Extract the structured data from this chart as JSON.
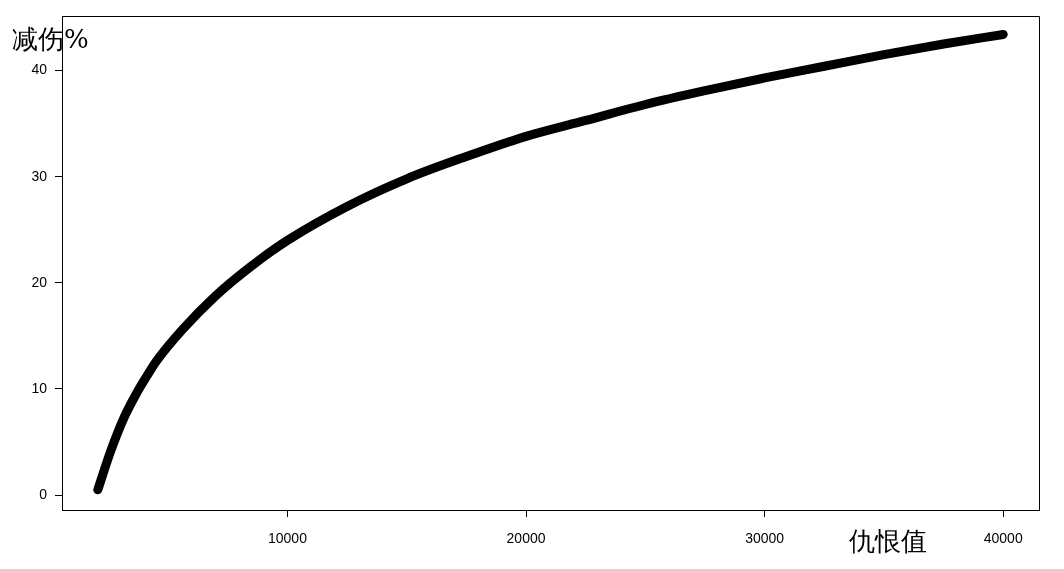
{
  "chart_data": {
    "type": "line",
    "xlabel": "仇恨值",
    "ylabel": "减伤%",
    "x": [
      2050,
      2600,
      3150,
      3700,
      4100,
      4500,
      5600,
      7000,
      8500,
      10000,
      12500,
      15000,
      17500,
      20000,
      22500,
      25000,
      27500,
      30000,
      32500,
      35000,
      37500,
      40000
    ],
    "series": [
      {
        "color": "#000000",
        "values": [
          0.5,
          4.2,
          7.3,
          9.7,
          11.2,
          12.6,
          15.6,
          18.8,
          21.6,
          24.0,
          27.2,
          29.8,
          31.9,
          33.8,
          35.3,
          36.8,
          38.1,
          39.3,
          40.4,
          41.5,
          42.5,
          43.4
        ]
      }
    ],
    "xlim": [
      550,
      41500
    ],
    "xticks": [
      10000,
      20000,
      30000,
      40000
    ],
    "ylim": [
      -1.4,
      45.1
    ],
    "yticks": [
      0,
      10,
      20,
      30,
      40
    ],
    "legend": false
  }
}
